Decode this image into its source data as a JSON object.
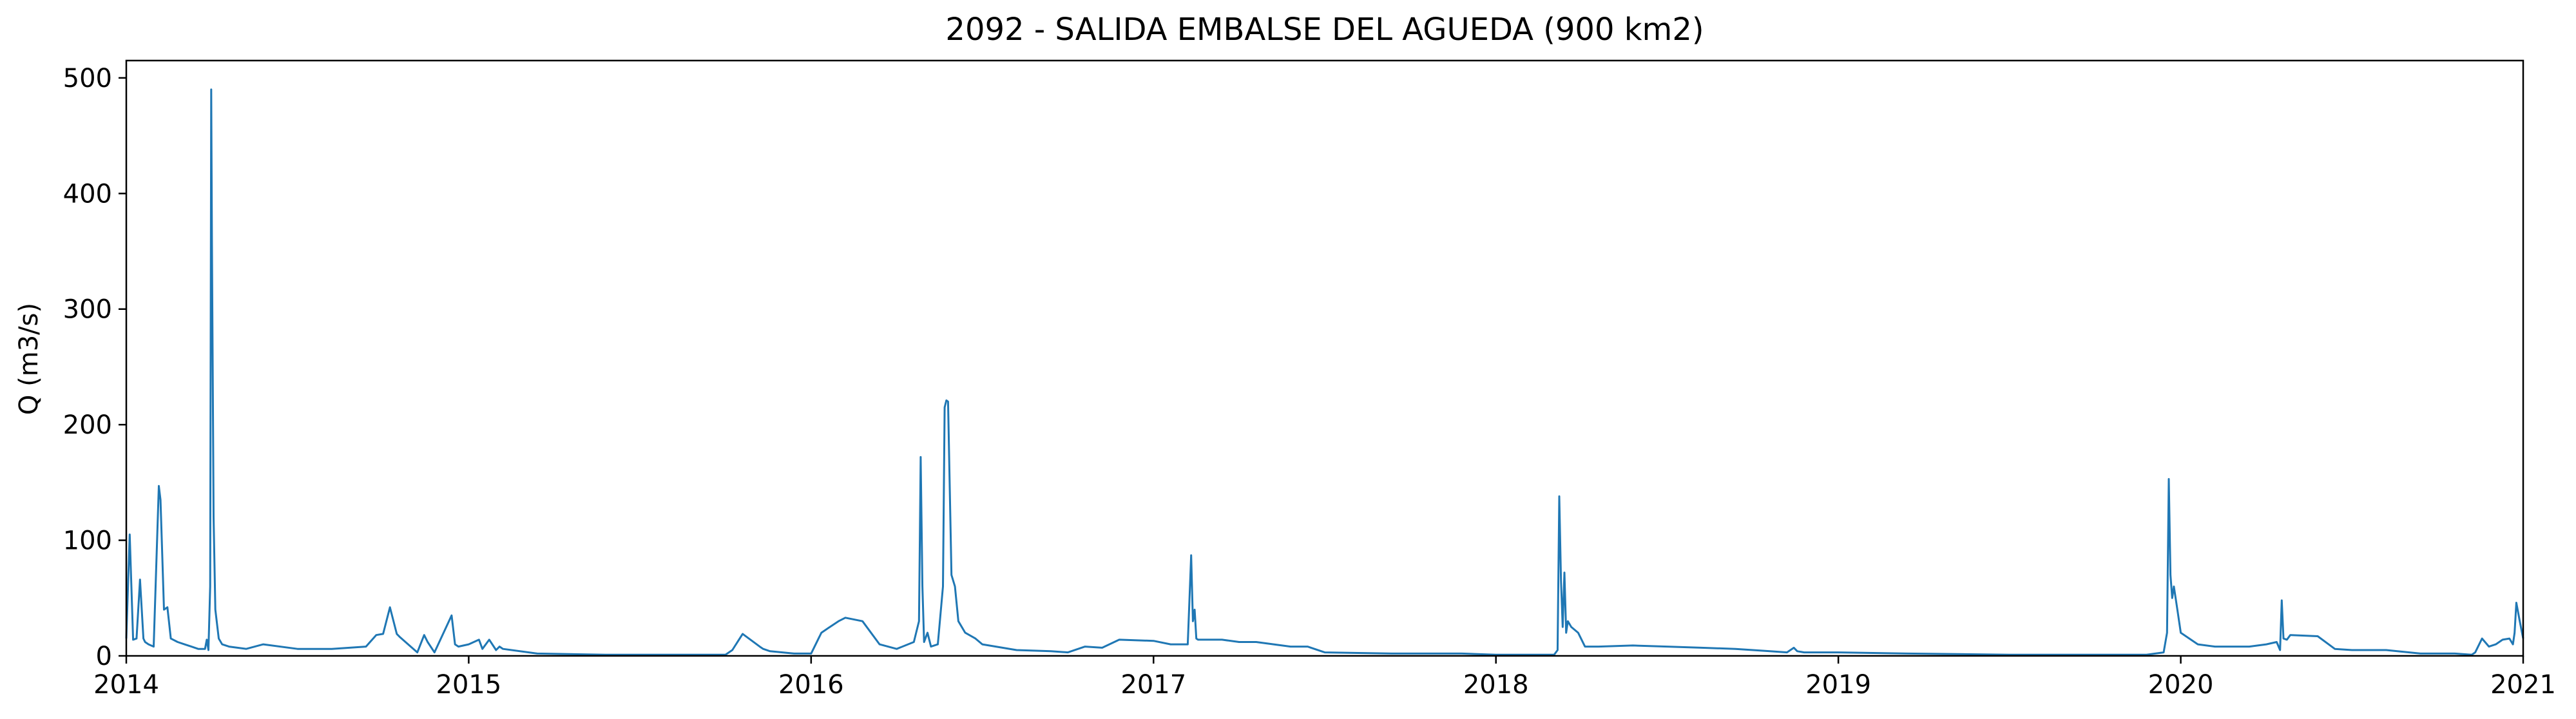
{
  "chart_data": {
    "type": "line",
    "title": "2092 - SALIDA EMBALSE DEL AGUEDA (900 km2)",
    "xlabel": "",
    "ylabel": "Q (m3/s)",
    "xlim": [
      2014,
      2021
    ],
    "ylim": [
      0,
      515
    ],
    "xticks": [
      "2014",
      "2015",
      "2016",
      "2017",
      "2018",
      "2019",
      "2020",
      "2021"
    ],
    "yticks": [
      "0",
      "100",
      "200",
      "300",
      "400",
      "500"
    ],
    "grid": false,
    "series": [
      {
        "color": "#1f77b4",
        "x": [
          2014.0,
          2014.01,
          2014.02,
          2014.03,
          2014.04,
          2014.05,
          2014.055,
          2014.065,
          2014.08,
          2014.095,
          2014.1,
          2014.11,
          2014.12,
          2014.13,
          2014.15,
          2014.17,
          2014.19,
          2014.21,
          2014.23,
          2014.235,
          2014.24,
          2014.245,
          2014.248,
          2014.25,
          2014.255,
          2014.26,
          2014.27,
          2014.28,
          2014.3,
          2014.35,
          2014.4,
          2014.5,
          2014.6,
          2014.7,
          2014.73,
          2014.75,
          2014.77,
          2014.79,
          2014.8,
          2014.85,
          2014.87,
          2014.88,
          2014.9,
          2014.95,
          2014.96,
          2014.97,
          2015.0,
          2015.03,
          2015.04,
          2015.06,
          2015.08,
          2015.09,
          2015.1,
          2015.2,
          2015.4,
          2015.6,
          2015.75,
          2015.77,
          2015.8,
          2015.85,
          2015.86,
          2015.88,
          2015.95,
          2016.0,
          2016.03,
          2016.05,
          2016.08,
          2016.1,
          2016.15,
          2016.2,
          2016.25,
          2016.3,
          2016.315,
          2016.32,
          2016.325,
          2016.33,
          2016.34,
          2016.35,
          2016.37,
          2016.385,
          2016.39,
          2016.395,
          2016.4,
          2016.41,
          2016.42,
          2016.43,
          2016.45,
          2016.48,
          2016.5,
          2016.6,
          2016.7,
          2016.75,
          2016.8,
          2016.85,
          2016.9,
          2017.0,
          2017.05,
          2017.1,
          2017.11,
          2017.115,
          2017.12,
          2017.125,
          2017.13,
          2017.14,
          2017.2,
          2017.25,
          2017.3,
          2017.4,
          2017.45,
          2017.5,
          2017.7,
          2017.9,
          2018.0,
          2018.1,
          2018.15,
          2018.17,
          2018.18,
          2018.185,
          2018.19,
          2018.195,
          2018.2,
          2018.205,
          2018.21,
          2018.22,
          2018.24,
          2018.26,
          2018.28,
          2018.3,
          2018.4,
          2018.5,
          2018.6,
          2018.7,
          2018.75,
          2018.8,
          2018.85,
          2018.87,
          2018.88,
          2018.9,
          2019.0,
          2019.2,
          2019.5,
          2019.8,
          2019.9,
          2019.95,
          2019.96,
          2019.965,
          2019.97,
          2019.975,
          2019.98,
          2019.99,
          2020.0,
          2020.05,
          2020.1,
          2020.15,
          2020.2,
          2020.25,
          2020.28,
          2020.29,
          2020.295,
          2020.3,
          2020.31,
          2020.32,
          2020.4,
          2020.45,
          2020.5,
          2020.6,
          2020.7,
          2020.8,
          2020.85,
          2020.86,
          2020.88,
          2020.9,
          2020.92,
          2020.94,
          2020.96,
          2020.97,
          2020.975,
          2020.98,
          2020.99,
          2021.0
        ],
        "y": [
          15,
          105,
          14,
          15,
          66,
          15,
          12,
          10,
          8,
          147,
          135,
          40,
          42,
          15,
          12,
          10,
          8,
          6,
          6,
          14,
          5,
          60,
          490,
          360,
          120,
          40,
          15,
          10,
          8,
          6,
          10,
          6,
          6,
          8,
          18,
          19,
          42,
          19,
          16,
          3,
          18,
          12,
          3,
          35,
          10,
          8,
          10,
          14,
          6,
          14,
          5,
          8,
          6,
          2,
          1,
          1,
          1,
          5,
          19,
          8,
          6,
          4,
          2,
          2,
          20,
          24,
          30,
          33,
          30,
          10,
          6,
          12,
          30,
          172,
          60,
          12,
          20,
          8,
          10,
          60,
          215,
          221,
          220,
          70,
          60,
          30,
          20,
          15,
          10,
          5,
          4,
          3,
          8,
          7,
          14,
          13,
          10,
          10,
          87,
          30,
          40,
          15,
          14,
          14,
          14,
          12,
          12,
          8,
          8,
          3,
          2,
          2,
          1,
          1,
          1,
          1,
          5,
          138,
          65,
          25,
          72,
          20,
          30,
          25,
          20,
          8,
          8,
          8,
          9,
          8,
          7,
          6,
          5,
          4,
          3,
          7,
          4,
          3,
          3,
          2,
          1,
          1,
          1,
          3,
          20,
          153,
          70,
          50,
          60,
          40,
          20,
          10,
          8,
          8,
          8,
          10,
          12,
          5,
          48,
          15,
          14,
          18,
          17,
          6,
          5,
          5,
          2,
          2,
          1,
          3,
          15,
          8,
          10,
          14,
          15,
          10,
          20,
          46,
          30,
          15
        ]
      }
    ]
  }
}
